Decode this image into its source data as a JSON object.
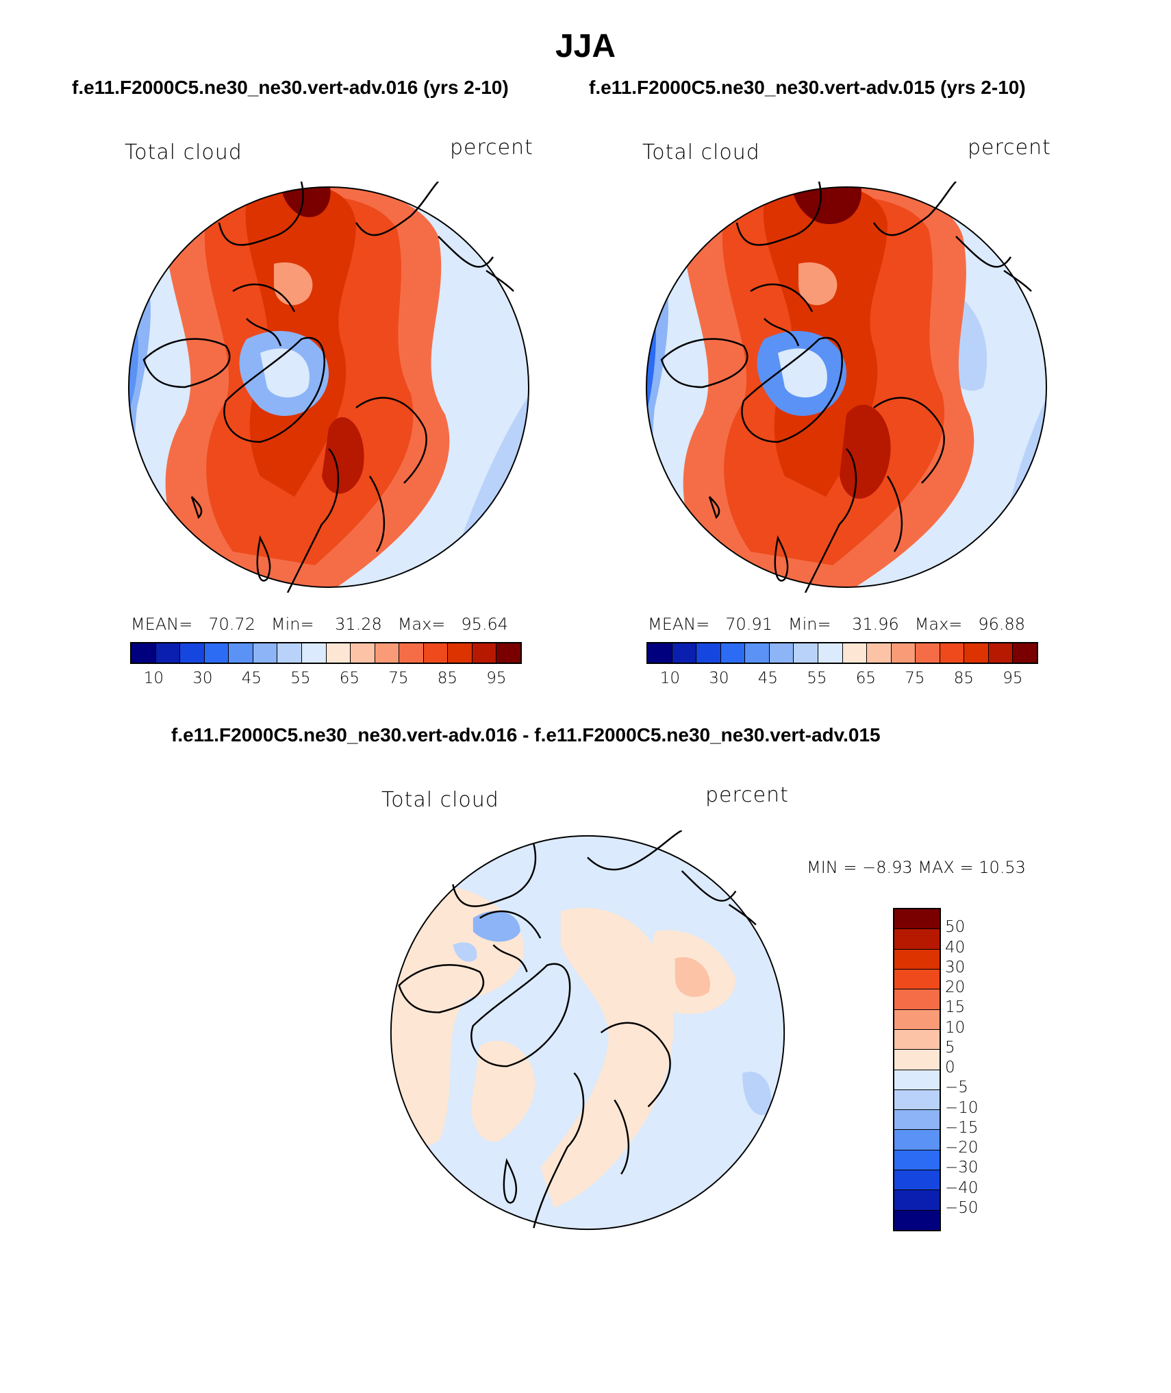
{
  "title": "JJA",
  "panels": [
    {
      "subtitle": "f.e11.F2000C5.ne30_ne30.vert-adv.016 (yrs 2-10)",
      "left_label": "Total cloud",
      "right_label": "percent",
      "stats": {
        "mean_label": "MEAN=",
        "mean": "70.72",
        "min_label": "Min=",
        "min": "31.28",
        "max_label": "Max=",
        "max": "95.64"
      },
      "colorbar_ticks": [
        "10",
        "30",
        "45",
        "55",
        "65",
        "75",
        "85",
        "95"
      ]
    },
    {
      "subtitle": "f.e11.F2000C5.ne30_ne30.vert-adv.015 (yrs 2-10)",
      "left_label": "Total cloud",
      "right_label": "percent",
      "stats": {
        "mean_label": "MEAN=",
        "mean": "70.91",
        "min_label": "Min=",
        "min": "31.96",
        "max_label": "Max=",
        "max": "96.88"
      },
      "colorbar_ticks": [
        "10",
        "30",
        "45",
        "55",
        "65",
        "75",
        "85",
        "95"
      ]
    }
  ],
  "diff": {
    "subtitle": "f.e11.F2000C5.ne30_ne30.vert-adv.016 - f.e11.F2000C5.ne30_ne30.vert-adv.015",
    "left_label": "Total cloud",
    "right_label": "percent",
    "minmax": "MIN =   −8.93 MAX =   10.53",
    "colorbar_ticks": [
      "50",
      "40",
      "30",
      "20",
      "15",
      "10",
      "5",
      "0",
      "−5",
      "−10",
      "−15",
      "−20",
      "−30",
      "−40",
      "−50"
    ]
  },
  "colors": {
    "abs_scale": [
      "#00007f",
      "#0a1fb0",
      "#1646e0",
      "#2c6cf5",
      "#5a92f5",
      "#8cb4f7",
      "#b9d2fa",
      "#dbeafc",
      "#fde6d4",
      "#fcc3a7",
      "#fa9b78",
      "#f56d47",
      "#ee4a1c",
      "#dd3300",
      "#b71800",
      "#7a0000"
    ],
    "diff_scale": [
      "#7a0000",
      "#b71800",
      "#dd3300",
      "#ee4a1c",
      "#f56d47",
      "#fa9b78",
      "#fcc3a7",
      "#fde6d4",
      "#dbeafc",
      "#b9d2fa",
      "#8cb4f7",
      "#5a92f5",
      "#2c6cf5",
      "#1646e0",
      "#0a1fb0",
      "#00007f"
    ]
  }
}
